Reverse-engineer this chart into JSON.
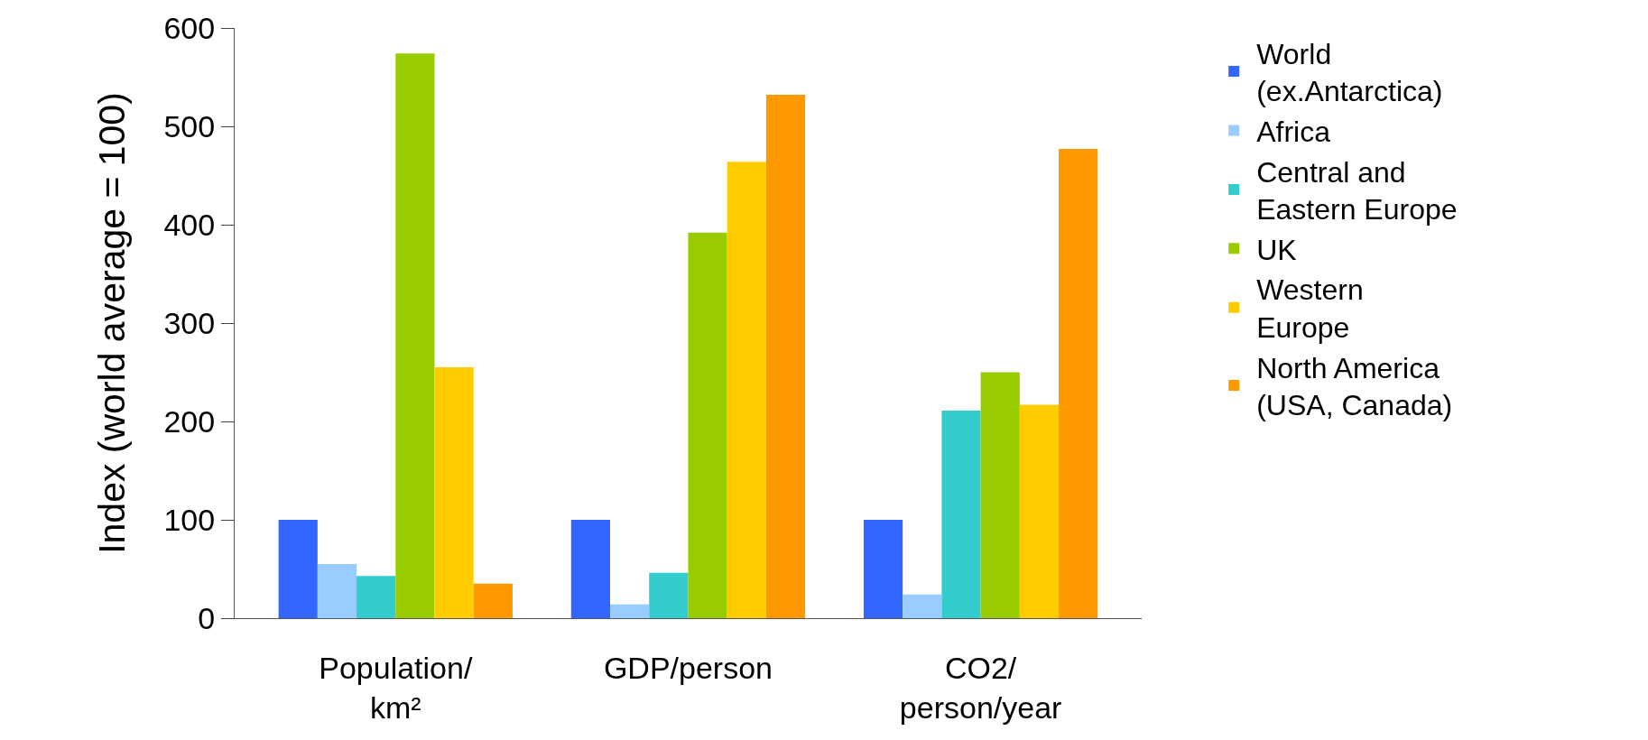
{
  "chart_data": {
    "type": "bar",
    "ylabel": "Index (world average = 100)",
    "categories": [
      "Population/\nkm²",
      "GDP/person",
      "CO2/\nperson/year"
    ],
    "series": [
      {
        "name": "World\n(ex.Antarctica)",
        "color": "#3366ff",
        "values": [
          100,
          100,
          100
        ]
      },
      {
        "name": "Africa",
        "color": "#99ccff",
        "values": [
          55,
          14,
          24
        ]
      },
      {
        "name": "Central and\nEastern Europe",
        "color": "#33cccc",
        "values": [
          43,
          46,
          211
        ]
      },
      {
        "name": "UK",
        "color": "#99cc00",
        "values": [
          574,
          392,
          250
        ]
      },
      {
        "name": "Western\nEurope",
        "color": "#ffcc00",
        "values": [
          255,
          464,
          217
        ]
      },
      {
        "name": "North America\n(USA, Canada)",
        "color": "#ff9900",
        "values": [
          35,
          532,
          477
        ]
      }
    ],
    "ylim": [
      0,
      600
    ],
    "yticks": [
      0,
      100,
      200,
      300,
      400,
      500,
      600
    ],
    "grid": false,
    "legend": "right"
  }
}
